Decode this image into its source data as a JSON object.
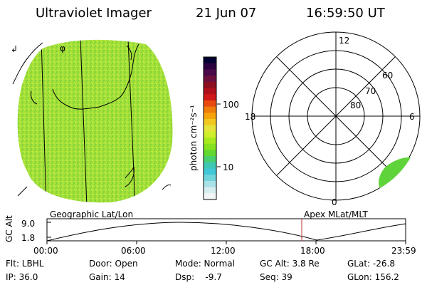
{
  "header": {
    "title": "Ultraviolet Imager",
    "date": "21 Jun 07",
    "time": "16:59:50 UT"
  },
  "colorbar": {
    "label": "photon cm⁻²s⁻¹",
    "ticks": [
      "100",
      "10"
    ],
    "colors": [
      "#000033",
      "#2b003f",
      "#4a0a4a",
      "#6b0f3f",
      "#8b0f1f",
      "#b0101a",
      "#d01818",
      "#e84a10",
      "#f07c0a",
      "#f5a30a",
      "#f0c820",
      "#e6e43a",
      "#cfef2a",
      "#a8ea1e",
      "#86e21e",
      "#62d832",
      "#48d070",
      "#3ec8b4",
      "#40c8d8",
      "#70d4dc",
      "#a8e2e6",
      "#d6eef0",
      "#f2f6f6"
    ]
  },
  "polar": {
    "mlt_labels": [
      "12",
      "18",
      "6",
      "0"
    ],
    "lat_labels": [
      "60",
      "70",
      "80"
    ]
  },
  "timeline": {
    "label_left": "Geographic Lat/Lon",
    "label_right": "Apex MLat/MLT",
    "ylabel": "GC Alt",
    "yticks": [
      "9.0",
      "1.8"
    ],
    "xticks": [
      "00:00",
      "06:00",
      "12:00",
      "18:00",
      "23:59"
    ],
    "current_time_marker": "16:59:50"
  },
  "info": {
    "flt": "Flt: LBHL",
    "ip": "IP: 36.0",
    "door": "Door: Open",
    "gain": "Gain: 14",
    "mode": "Mode: Normal",
    "dsp": "Dsp:    -9.7",
    "gcalt": "GC Alt: 3.8 Re",
    "seq": "Seq: 39",
    "glat": "GLat: -26.8",
    "glon": "GLon: 156.2"
  }
}
